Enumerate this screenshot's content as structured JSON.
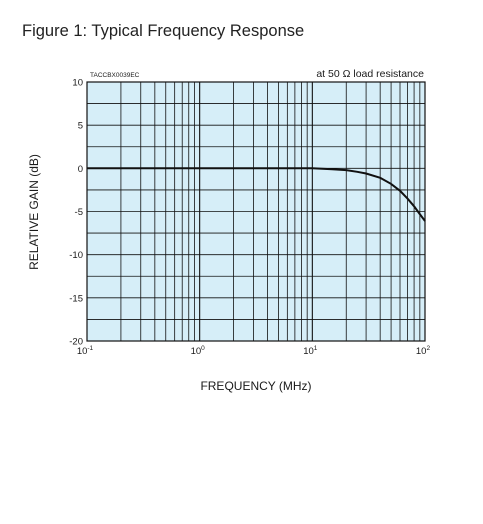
{
  "figure": {
    "title": "Figure 1: Typical Frequency Response"
  },
  "chart_data": {
    "type": "line",
    "title": "",
    "xlabel": "FREQUENCY (MHz)",
    "ylabel": "RELATIVE GAIN (dB)",
    "x_scale": "log",
    "xlim": [
      0.1,
      100
    ],
    "ylim": [
      -20,
      10
    ],
    "x_ticks": [
      0.1,
      1,
      10,
      100
    ],
    "x_tick_labels": [
      {
        "base": "10",
        "exp": "-1"
      },
      {
        "base": "10",
        "exp": "0"
      },
      {
        "base": "10",
        "exp": "1"
      },
      {
        "base": "10",
        "exp": "2"
      }
    ],
    "y_ticks": [
      10,
      5,
      0,
      -5,
      -10,
      -15,
      -20
    ],
    "y_tick_labels": [
      "10",
      "5",
      "0",
      "-5",
      "-10",
      "-15",
      "-20"
    ],
    "grid": true,
    "background": "#d6eef8",
    "line_color": "#111111",
    "annotations": {
      "top_right": "at 50 Ω load resistance",
      "top_left_code": "TACCBX0039EC"
    },
    "series": [
      {
        "x": [
          0.1,
          1,
          10,
          15,
          20,
          25,
          30,
          40,
          50,
          60,
          70,
          80,
          90,
          100
        ],
        "values": [
          0,
          0,
          0,
          -0.1,
          -0.2,
          -0.4,
          -0.6,
          -1.1,
          -1.8,
          -2.6,
          -3.5,
          -4.4,
          -5.3,
          -6.1
        ]
      }
    ]
  }
}
